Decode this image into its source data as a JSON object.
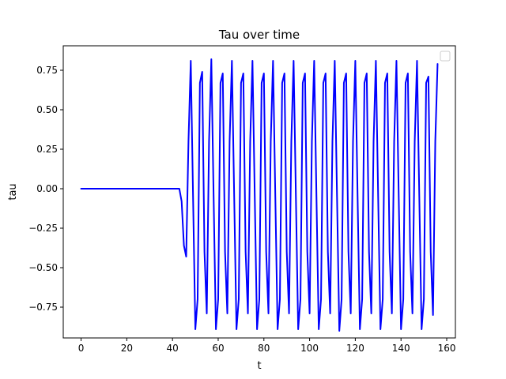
{
  "chart_data": {
    "type": "line",
    "title": "Tau over time",
    "xlabel": "t",
    "ylabel": "tau",
    "xlim": [
      -7.8,
      163.8
    ],
    "ylim": [
      -0.945,
      0.905
    ],
    "xticks": [
      0,
      20,
      40,
      60,
      80,
      100,
      120,
      140,
      160
    ],
    "xtick_labels": [
      "0",
      "20",
      "40",
      "60",
      "80",
      "100",
      "120",
      "140",
      "160"
    ],
    "yticks": [
      -0.75,
      -0.5,
      -0.25,
      0.0,
      0.25,
      0.5,
      0.75
    ],
    "ytick_labels": [
      "−0.75",
      "−0.50",
      "−0.25",
      "0.00",
      "0.25",
      "0.50",
      "0.75"
    ],
    "grid": false,
    "legend": {
      "position": "top-right",
      "entries": []
    },
    "series": [
      {
        "color": "#0000ff",
        "x": [
          0,
          43,
          44,
          45,
          46,
          47,
          48,
          49,
          50,
          51,
          52,
          53,
          54,
          55,
          56,
          57,
          58,
          59,
          60,
          61,
          62,
          63,
          64,
          65,
          66,
          67,
          68,
          69,
          70,
          71,
          72,
          73,
          74,
          75,
          76,
          77,
          78,
          79,
          80,
          81,
          82,
          83,
          84,
          85,
          86,
          87,
          88,
          89,
          90,
          91,
          92,
          93,
          94,
          95,
          96,
          97,
          98,
          99,
          100,
          101,
          102,
          103,
          104,
          105,
          106,
          107,
          108,
          109,
          110,
          111,
          112,
          113,
          114,
          115,
          116,
          117,
          118,
          119,
          120,
          121,
          122,
          123,
          124,
          125,
          126,
          127,
          128,
          129,
          130,
          131,
          132,
          133,
          134,
          135,
          136,
          137,
          138,
          139,
          140,
          141,
          142,
          143,
          144,
          145,
          146,
          147,
          148,
          149,
          150,
          151,
          152,
          153,
          154,
          155,
          156
        ],
        "y": [
          0.0,
          0.0,
          -0.08,
          -0.36,
          -0.43,
          0.3,
          0.81,
          -0.05,
          -0.89,
          -0.7,
          0.67,
          0.74,
          -0.4,
          -0.79,
          0.3,
          0.82,
          -0.05,
          -0.89,
          -0.7,
          0.67,
          0.73,
          -0.4,
          -0.79,
          0.3,
          0.81,
          -0.05,
          -0.89,
          -0.7,
          0.67,
          0.73,
          -0.4,
          -0.79,
          0.3,
          0.81,
          -0.05,
          -0.89,
          -0.7,
          0.67,
          0.73,
          -0.4,
          -0.79,
          0.3,
          0.81,
          -0.05,
          -0.89,
          -0.7,
          0.67,
          0.73,
          -0.4,
          -0.79,
          0.3,
          0.81,
          -0.05,
          -0.89,
          -0.7,
          0.67,
          0.73,
          -0.4,
          -0.79,
          0.3,
          0.81,
          -0.05,
          -0.89,
          -0.7,
          0.67,
          0.73,
          -0.4,
          -0.79,
          0.3,
          0.81,
          -0.05,
          -0.9,
          -0.7,
          0.67,
          0.73,
          -0.4,
          -0.79,
          0.3,
          0.81,
          -0.05,
          -0.89,
          -0.7,
          0.67,
          0.73,
          -0.4,
          -0.79,
          0.3,
          0.81,
          -0.05,
          -0.89,
          -0.7,
          0.67,
          0.73,
          -0.4,
          -0.79,
          0.3,
          0.81,
          -0.05,
          -0.89,
          -0.7,
          0.67,
          0.73,
          -0.4,
          -0.79,
          0.3,
          0.81,
          -0.05,
          -0.89,
          -0.7,
          0.67,
          0.71,
          -0.4,
          -0.8,
          0.3,
          0.79
        ]
      }
    ]
  }
}
